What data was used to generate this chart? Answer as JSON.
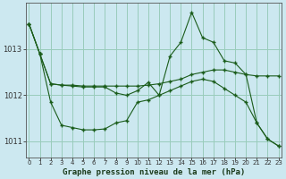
{
  "title": "Graphe pression niveau de la mer (hPa)",
  "background_color": "#cce8f0",
  "grid_color": "#99ccbb",
  "line_color": "#1a5c1a",
  "hours": [
    0,
    1,
    2,
    3,
    4,
    5,
    6,
    7,
    8,
    9,
    10,
    11,
    12,
    13,
    14,
    15,
    16,
    17,
    18,
    19,
    20,
    21,
    22,
    23
  ],
  "line1": [
    1013.55,
    1012.9,
    1012.25,
    1012.22,
    1012.22,
    1012.2,
    1012.2,
    1012.2,
    1012.2,
    1012.2,
    1012.2,
    1012.22,
    1012.25,
    1012.3,
    1012.35,
    1012.45,
    1012.5,
    1012.55,
    1012.55,
    1012.5,
    1012.45,
    1012.42,
    1012.42,
    1012.42
  ],
  "line2": [
    1013.55,
    1012.9,
    1012.25,
    1012.22,
    1012.2,
    1012.18,
    1012.18,
    1012.18,
    1012.05,
    1012.0,
    1012.1,
    1012.28,
    1012.0,
    1012.85,
    1013.15,
    1013.8,
    1013.25,
    1013.15,
    1012.75,
    1012.7,
    1012.45,
    1011.4,
    1011.05,
    1010.9
  ],
  "line3": [
    1013.55,
    1012.9,
    1011.85,
    1011.35,
    1011.3,
    1011.25,
    1011.25,
    1011.27,
    1011.4,
    1011.45,
    1011.85,
    1011.9,
    1012.0,
    1012.1,
    1012.2,
    1012.3,
    1012.35,
    1012.3,
    1012.15,
    1012.0,
    1011.85,
    1011.4,
    1011.05,
    1010.9
  ],
  "ylim": [
    1010.65,
    1014.0
  ],
  "yticks": [
    1011,
    1012,
    1013
  ],
  "xlim": [
    -0.3,
    23.3
  ]
}
